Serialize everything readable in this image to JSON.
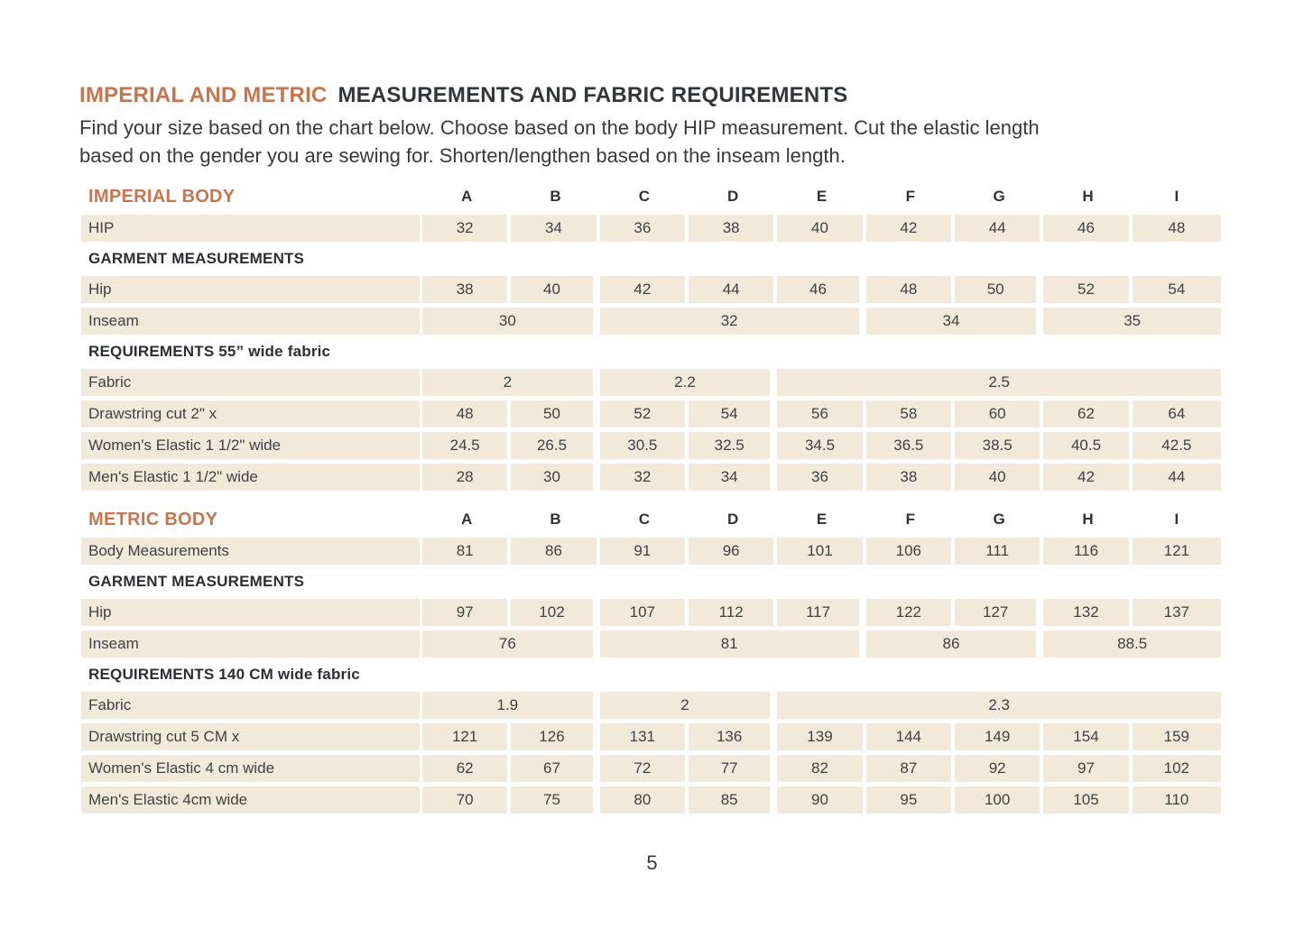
{
  "header": {
    "title_accent": "IMPERIAL AND METRIC",
    "title_main": "MEASUREMENTS AND FABRIC REQUIREMENTS",
    "intro_lines": [
      "Find your size based on the chart below. Choose based on the body HIP measurement. Cut the elastic length",
      "based on the gender you are sewing for. Shorten/lengthen based on the inseam length."
    ]
  },
  "colors": {
    "accent": "#c8754e",
    "cell_background": "#f2e9da",
    "text": "#3e4144"
  },
  "size_letters": [
    "A",
    "B",
    "C",
    "D",
    "E",
    "F",
    "G",
    "H",
    "I"
  ],
  "sections": [
    {
      "type": "letters",
      "title": "IMPERIAL BODY"
    },
    {
      "type": "row",
      "label": "HIP",
      "wide_after": [],
      "cells": [
        {
          "t": "32"
        },
        {
          "t": "34"
        },
        {
          "t": "36"
        },
        {
          "t": "38"
        },
        {
          "t": "40"
        },
        {
          "t": "42"
        },
        {
          "t": "44"
        },
        {
          "t": "46"
        },
        {
          "t": "48"
        }
      ]
    },
    {
      "type": "subheader",
      "text": "GARMENT MEASUREMENTS"
    },
    {
      "type": "row",
      "label": "Hip",
      "wide_after": [
        1,
        4,
        6
      ],
      "cells": [
        {
          "t": "38"
        },
        {
          "t": "40"
        },
        {
          "t": "42"
        },
        {
          "t": "44"
        },
        {
          "t": "46"
        },
        {
          "t": "48"
        },
        {
          "t": "50"
        },
        {
          "t": "52"
        },
        {
          "t": "54"
        }
      ]
    },
    {
      "type": "row",
      "label": "Inseam",
      "wide_after": [
        0,
        1,
        2
      ],
      "cells": [
        {
          "t": "30",
          "span": 2
        },
        {
          "t": "32",
          "span": 3
        },
        {
          "t": "34",
          "span": 2
        },
        {
          "t": "35",
          "span": 2
        }
      ]
    },
    {
      "type": "subheader",
      "text": "REQUIREMENTS 55” wide fabric"
    },
    {
      "type": "row",
      "label": "Fabric",
      "wide_after": [
        0,
        1
      ],
      "cells": [
        {
          "t": "2",
          "span": 2
        },
        {
          "t": "2.2",
          "span": 2
        },
        {
          "t": "2.5",
          "span": 5
        }
      ]
    },
    {
      "type": "row",
      "label": "Drawstring cut 2\" x",
      "wide_after": [
        1,
        3
      ],
      "cells": [
        {
          "t": "48"
        },
        {
          "t": "50"
        },
        {
          "t": "52"
        },
        {
          "t": "54"
        },
        {
          "t": "56"
        },
        {
          "t": "58"
        },
        {
          "t": "60"
        },
        {
          "t": "62"
        },
        {
          "t": "64"
        }
      ]
    },
    {
      "type": "row",
      "label": "Women's Elastic 1 1/2\" wide",
      "wide_after": [
        1,
        3
      ],
      "cells": [
        {
          "t": "24.5"
        },
        {
          "t": "26.5"
        },
        {
          "t": "30.5"
        },
        {
          "t": "32.5"
        },
        {
          "t": "34.5"
        },
        {
          "t": "36.5"
        },
        {
          "t": "38.5"
        },
        {
          "t": "40.5"
        },
        {
          "t": "42.5"
        }
      ]
    },
    {
      "type": "row",
      "label": "Men's Elastic 1 1/2\" wide",
      "wide_after": [
        1,
        3
      ],
      "cells": [
        {
          "t": "28"
        },
        {
          "t": "30"
        },
        {
          "t": "32"
        },
        {
          "t": "34"
        },
        {
          "t": "36"
        },
        {
          "t": "38"
        },
        {
          "t": "40"
        },
        {
          "t": "42"
        },
        {
          "t": "44"
        }
      ]
    },
    {
      "type": "letters",
      "title": "METRIC BODY"
    },
    {
      "type": "row",
      "label": "Body Measurements",
      "wide_after": [],
      "cells": [
        {
          "t": "81"
        },
        {
          "t": "86"
        },
        {
          "t": "91"
        },
        {
          "t": "96"
        },
        {
          "t": "101"
        },
        {
          "t": "106"
        },
        {
          "t": "111"
        },
        {
          "t": "116"
        },
        {
          "t": "121"
        }
      ]
    },
    {
      "type": "subheader",
      "text": "GARMENT MEASUREMENTS"
    },
    {
      "type": "row",
      "label": "Hip",
      "wide_after": [
        1,
        4,
        6
      ],
      "cells": [
        {
          "t": "97"
        },
        {
          "t": "102"
        },
        {
          "t": "107"
        },
        {
          "t": "112"
        },
        {
          "t": "117"
        },
        {
          "t": "122"
        },
        {
          "t": "127"
        },
        {
          "t": "132"
        },
        {
          "t": "137"
        }
      ]
    },
    {
      "type": "row",
      "label": "Inseam",
      "wide_after": [
        0,
        1,
        2
      ],
      "cells": [
        {
          "t": "76",
          "span": 2
        },
        {
          "t": "81",
          "span": 3
        },
        {
          "t": "86",
          "span": 2
        },
        {
          "t": "88.5",
          "span": 2
        }
      ]
    },
    {
      "type": "subheader",
      "text": "REQUIREMENTS 140 CM wide fabric"
    },
    {
      "type": "row",
      "label": "Fabric",
      "wide_after": [
        0,
        1
      ],
      "cells": [
        {
          "t": "1.9",
          "span": 2
        },
        {
          "t": "2",
          "span": 2
        },
        {
          "t": "2.3",
          "span": 5
        }
      ]
    },
    {
      "type": "row",
      "label": "Drawstring cut 5 CM x",
      "wide_after": [
        1,
        3
      ],
      "cells": [
        {
          "t": "121"
        },
        {
          "t": "126"
        },
        {
          "t": "131"
        },
        {
          "t": "136"
        },
        {
          "t": "139"
        },
        {
          "t": "144"
        },
        {
          "t": "149"
        },
        {
          "t": "154"
        },
        {
          "t": "159"
        }
      ]
    },
    {
      "type": "row",
      "label": "Women's Elastic 4 cm wide",
      "wide_after": [
        1,
        3
      ],
      "cells": [
        {
          "t": "62"
        },
        {
          "t": "67"
        },
        {
          "t": "72"
        },
        {
          "t": "77"
        },
        {
          "t": "82"
        },
        {
          "t": "87"
        },
        {
          "t": "92"
        },
        {
          "t": "97"
        },
        {
          "t": "102"
        }
      ]
    },
    {
      "type": "row",
      "label": "Men's Elastic 4cm wide",
      "wide_after": [
        1,
        3
      ],
      "cells": [
        {
          "t": "70"
        },
        {
          "t": "75"
        },
        {
          "t": "80"
        },
        {
          "t": "85"
        },
        {
          "t": "90"
        },
        {
          "t": "95"
        },
        {
          "t": "100"
        },
        {
          "t": "105"
        },
        {
          "t": "110"
        }
      ]
    }
  ],
  "footer": {
    "page_number": "5"
  }
}
